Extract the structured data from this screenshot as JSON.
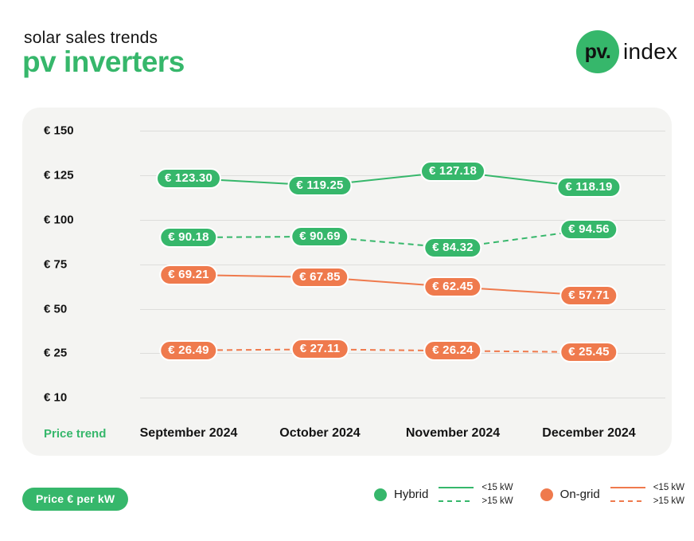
{
  "header": {
    "subtitle": "solar sales trends",
    "title": "pv inverters"
  },
  "logo": {
    "circle_text": "pv.",
    "text": "index"
  },
  "colors": {
    "green": "#36b76b",
    "orange": "#ef7a4d",
    "card_background": "#f4f4f2",
    "gridline": "#dddddb",
    "text": "#141414"
  },
  "chart_data": {
    "type": "line",
    "title": "solar sales trends — pv inverters",
    "x_axis_label": "Price trend",
    "x_categories": [
      "September 2024",
      "October 2024",
      "November 2024",
      "December 2024"
    ],
    "y_axis": {
      "unit": "€",
      "ticks": [
        {
          "label": "€ 150",
          "value": 150
        },
        {
          "label": "€ 125",
          "value": 125
        },
        {
          "label": "€ 100",
          "value": 100
        },
        {
          "label": "€ 75",
          "value": 75
        },
        {
          "label": "€ 50",
          "value": 50
        },
        {
          "label": "€ 25",
          "value": 25
        },
        {
          "label": "€ 10",
          "value": 10
        }
      ]
    },
    "series": [
      {
        "name": "Hybrid <15 kW",
        "group": "Hybrid",
        "variant": "<15 kW",
        "style": "solid",
        "color": "#36b76b",
        "values": [
          123.3,
          119.25,
          127.18,
          118.19
        ],
        "labels": [
          "€ 123.30",
          "€ 119.25",
          "€ 127.18",
          "€ 118.19"
        ]
      },
      {
        "name": "Hybrid >15 kW",
        "group": "Hybrid",
        "variant": ">15 kW",
        "style": "dashed",
        "color": "#36b76b",
        "values": [
          90.18,
          90.69,
          84.32,
          94.56
        ],
        "labels": [
          "€ 90.18",
          "€ 90.69",
          "€ 84.32",
          "€ 94.56"
        ]
      },
      {
        "name": "On-grid <15 kW",
        "group": "On-grid",
        "variant": "<15 kW",
        "style": "solid",
        "color": "#ef7a4d",
        "values": [
          69.21,
          67.85,
          62.45,
          57.71
        ],
        "labels": [
          "€ 69.21",
          "€ 67.85",
          "€ 62.45",
          "€ 57.71"
        ]
      },
      {
        "name": "On-grid >15 kW",
        "group": "On-grid",
        "variant": ">15 kW",
        "style": "dashed",
        "color": "#ef7a4d",
        "values": [
          26.49,
          27.11,
          26.24,
          25.45
        ],
        "labels": [
          "€ 26.49",
          "€ 27.11",
          "€ 26.24",
          "€ 25.45"
        ]
      }
    ],
    "legend": [
      {
        "name": "Hybrid",
        "color": "#36b76b",
        "entries": [
          {
            "style": "solid",
            "label": "<15 kW"
          },
          {
            "style": "dashed",
            "label": ">15 kW"
          }
        ]
      },
      {
        "name": "On-grid",
        "color": "#ef7a4d",
        "entries": [
          {
            "style": "solid",
            "label": "<15 kW"
          },
          {
            "style": "dashed",
            "label": ">15 kW"
          }
        ]
      }
    ],
    "legend_position": "bottom-right",
    "grid": true
  },
  "footer": {
    "unit_badge": "Price € per kW"
  }
}
